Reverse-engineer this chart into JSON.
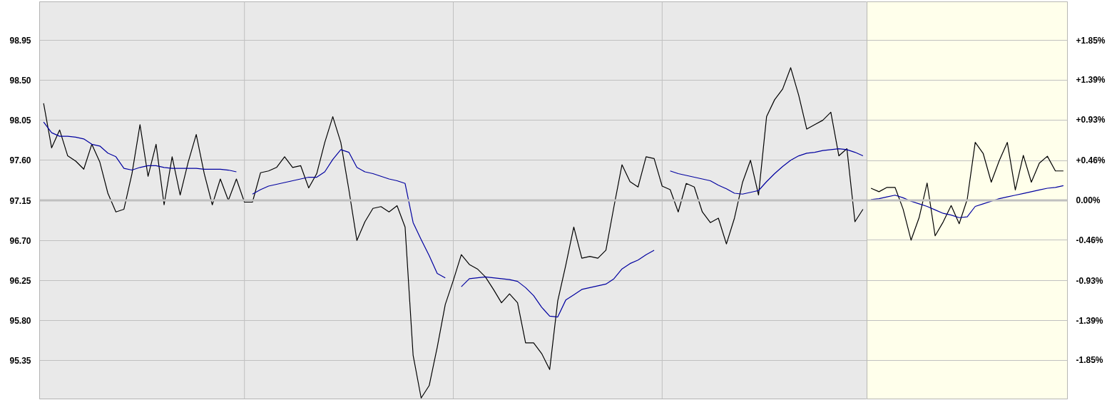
{
  "chart_data": [
    {
      "type": "line",
      "categories": [
        null,
        null,
        null,
        null,
        null,
        null,
        null,
        null,
        null,
        null,
        null,
        null,
        null,
        null,
        null,
        null,
        null,
        null,
        null,
        null,
        null,
        null,
        null,
        null,
        null,
        null,
        null,
        null,
        null,
        null,
        null,
        null,
        null,
        null,
        null,
        null,
        null,
        null,
        null,
        null,
        null,
        null,
        null,
        null,
        null,
        null,
        null,
        null,
        null,
        null,
        null,
        null,
        null,
        null,
        null,
        null,
        null,
        null,
        null,
        null,
        null,
        null,
        null,
        null,
        null,
        null,
        null,
        null,
        null,
        null,
        null,
        null,
        null,
        null,
        null,
        null,
        null,
        null,
        null,
        null,
        null,
        null,
        null,
        null,
        null,
        null,
        null,
        null,
        null,
        null,
        null,
        null,
        null,
        null,
        null,
        null,
        null,
        null,
        null,
        null,
        null,
        null,
        null
      ],
      "ylim": [
        94.92,
        99.38
      ],
      "yticks": [
        98.95,
        {
          "value": 98.5,
          "label": "98.50"
        },
        98.05,
        {
          "value": 97.6,
          "label": "97.60"
        },
        97.15,
        {
          "value": 96.7,
          "label": "96.70"
        },
        96.25,
        {
          "value": 95.8,
          "label": "95.80"
        },
        95.35
      ],
      "tick_labels": "y",
      "grid": true,
      "marker": "none",
      "line_style": "solid",
      "bands": [
        {
          "axis": "y",
          "from": 94.92,
          "to": 99.38,
          "color": "#e9e9e9"
        }
      ],
      "ref_lines": [
        {
          "axis": "y",
          "value": 97.15,
          "color": "#c0c0c0"
        }
      ],
      "series": [
        {
          "color": "#000000",
          "values": [
            98.24,
            97.74,
            97.94,
            97.65,
            97.59,
            97.5,
            97.78,
            97.58,
            97.23,
            97.02,
            97.05,
            97.45,
            98.0,
            97.42,
            97.78,
            97.1,
            97.64,
            97.21,
            97.58,
            97.89,
            97.45,
            97.1,
            97.39,
            97.15,
            97.39,
            97.13,
            97.13,
            97.46,
            97.48,
            97.52,
            97.64,
            97.52,
            97.54,
            97.29,
            97.45,
            97.8,
            98.09,
            97.8,
            97.27,
            96.7,
            96.91,
            97.06,
            97.08,
            97.02,
            97.09,
            96.85,
            95.41,
            94.93,
            95.07,
            95.5,
            95.98,
            96.25,
            96.54,
            96.43,
            96.38,
            96.29,
            96.15,
            96.0,
            96.1,
            96.0,
            95.55,
            95.55,
            95.43,
            95.25,
            96.02,
            96.42,
            96.85,
            96.5,
            96.52,
            96.5,
            96.59,
            97.08,
            97.55,
            97.36,
            97.3,
            97.64,
            97.62,
            97.31,
            97.27,
            97.02,
            97.34,
            97.3,
            97.02,
            96.9,
            96.95,
            96.66,
            96.95,
            97.35,
            97.6,
            97.21,
            98.09,
            98.28,
            98.4,
            98.64,
            98.33,
            97.95,
            98.0,
            98.05,
            98.14,
            97.65,
            97.73,
            96.91,
            97.05
          ]
        },
        {
          "color": "#0000a0",
          "values": [
            98.03,
            97.91,
            97.87,
            97.87,
            97.86,
            97.84,
            97.78,
            97.76,
            97.68,
            97.64,
            97.51,
            97.49,
            97.52,
            97.54,
            97.54,
            97.52,
            97.51,
            97.51,
            97.51,
            97.51,
            97.5,
            97.5,
            97.5,
            97.49,
            97.47,
            null,
            97.22,
            97.27,
            97.31,
            97.33,
            97.35,
            97.37,
            97.39,
            97.41,
            97.41,
            97.47,
            97.61,
            97.72,
            97.69,
            97.52,
            97.47,
            97.45,
            97.42,
            97.39,
            97.37,
            97.34,
            96.9,
            96.71,
            96.53,
            96.33,
            96.28,
            null,
            96.18,
            96.27,
            96.28,
            96.29,
            96.28,
            96.27,
            96.26,
            96.24,
            96.17,
            96.08,
            95.95,
            95.85,
            95.84,
            96.03,
            96.09,
            96.15,
            96.17,
            96.19,
            96.21,
            96.27,
            96.38,
            96.44,
            96.48,
            96.54,
            96.59,
            null,
            97.48,
            97.45,
            97.43,
            97.41,
            97.39,
            97.37,
            97.32,
            97.28,
            97.23,
            97.22,
            97.24,
            97.26,
            97.36,
            97.45,
            97.53,
            97.6,
            97.65,
            97.68,
            97.69,
            97.71,
            97.72,
            97.73,
            97.72,
            97.69,
            97.65
          ]
        }
      ]
    },
    {
      "type": "line",
      "categories": [
        null,
        null,
        null,
        null,
        null,
        null,
        null,
        null,
        null,
        null,
        null,
        null,
        null,
        null,
        null,
        null,
        null,
        null,
        null,
        null,
        null,
        null,
        null,
        null,
        null
      ],
      "ylim": [
        -2.295,
        2.295
      ],
      "yticks": [
        {
          "value": 1.85,
          "label": "+1.85%"
        },
        {
          "value": 1.39,
          "label": "+1.39%"
        },
        {
          "value": 0.93,
          "label": "+0.93%"
        },
        {
          "value": 0.46,
          "label": "+0.46%"
        },
        {
          "value": 0,
          "label": "0.00%"
        },
        {
          "value": -0.46,
          "label": "-0.46%"
        },
        {
          "value": -0.93,
          "label": "-0.93%"
        },
        {
          "value": -1.39,
          "label": "-1.39%"
        },
        {
          "value": -1.85,
          "label": "-1.85%"
        }
      ],
      "tick_labels": "y",
      "grid": "y",
      "marker": "none",
      "line_style": "solid",
      "bands": [
        {
          "axis": "y",
          "from": -2.295,
          "to": 2.295,
          "color": "#ffffeb"
        }
      ],
      "ref_lines": [
        {
          "axis": "y",
          "value": 0,
          "color": "#c0c0c0"
        }
      ],
      "series": [
        {
          "color": "#000000",
          "values": [
            0.14,
            0.1,
            0.15,
            0.15,
            -0.1,
            -0.46,
            -0.2,
            0.2,
            -0.41,
            -0.25,
            -0.06,
            -0.27,
            0.01,
            0.67,
            0.54,
            0.21,
            0.46,
            0.67,
            0.12,
            0.52,
            0.21,
            0.43,
            0.51,
            0.34,
            0.34
          ]
        },
        {
          "color": "#0000a0",
          "values": [
            0.01,
            0.02,
            0.04,
            0.06,
            0.03,
            -0.01,
            -0.04,
            -0.07,
            -0.11,
            -0.15,
            -0.17,
            -0.2,
            -0.19,
            -0.07,
            -0.04,
            -0.01,
            0.02,
            0.04,
            0.06,
            0.08,
            0.1,
            0.12,
            0.14,
            0.15,
            0.17
          ]
        }
      ]
    }
  ]
}
